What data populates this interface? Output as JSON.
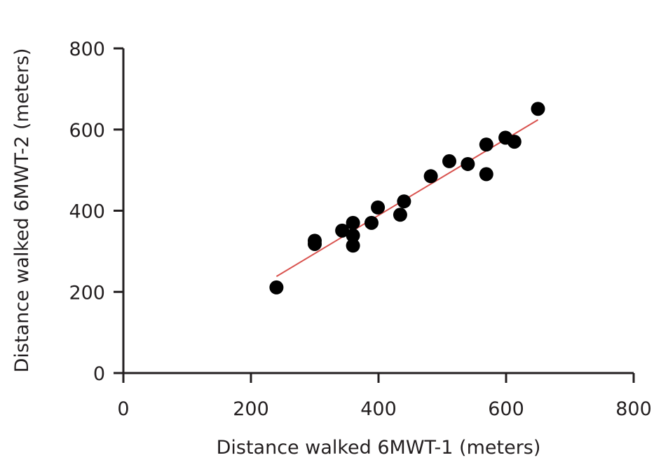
{
  "chart_data": {
    "type": "scatter",
    "title": "",
    "xlabel": "Distance walked 6MWT-1 (meters)",
    "ylabel": "Distance walked 6MWT-2 (meters)",
    "xlim": [
      0,
      800
    ],
    "ylim": [
      0,
      800
    ],
    "xticks": [
      0,
      200,
      400,
      600,
      800
    ],
    "yticks": [
      0,
      200,
      400,
      600,
      800
    ],
    "grid": false,
    "points": [
      [
        240,
        211
      ],
      [
        300,
        326
      ],
      [
        300,
        318
      ],
      [
        343,
        351
      ],
      [
        360,
        370
      ],
      [
        360,
        339
      ],
      [
        360,
        314
      ],
      [
        389,
        370
      ],
      [
        399,
        408
      ],
      [
        434,
        390
      ],
      [
        440,
        423
      ],
      [
        482,
        485
      ],
      [
        511,
        522
      ],
      [
        540,
        515
      ],
      [
        569,
        563
      ],
      [
        569,
        490
      ],
      [
        599,
        580
      ],
      [
        613,
        570
      ],
      [
        650,
        651
      ]
    ],
    "fit_line": {
      "x": [
        240,
        650
      ],
      "y": [
        238,
        624
      ],
      "color": "#d9534f"
    },
    "point_color": "#000000"
  }
}
